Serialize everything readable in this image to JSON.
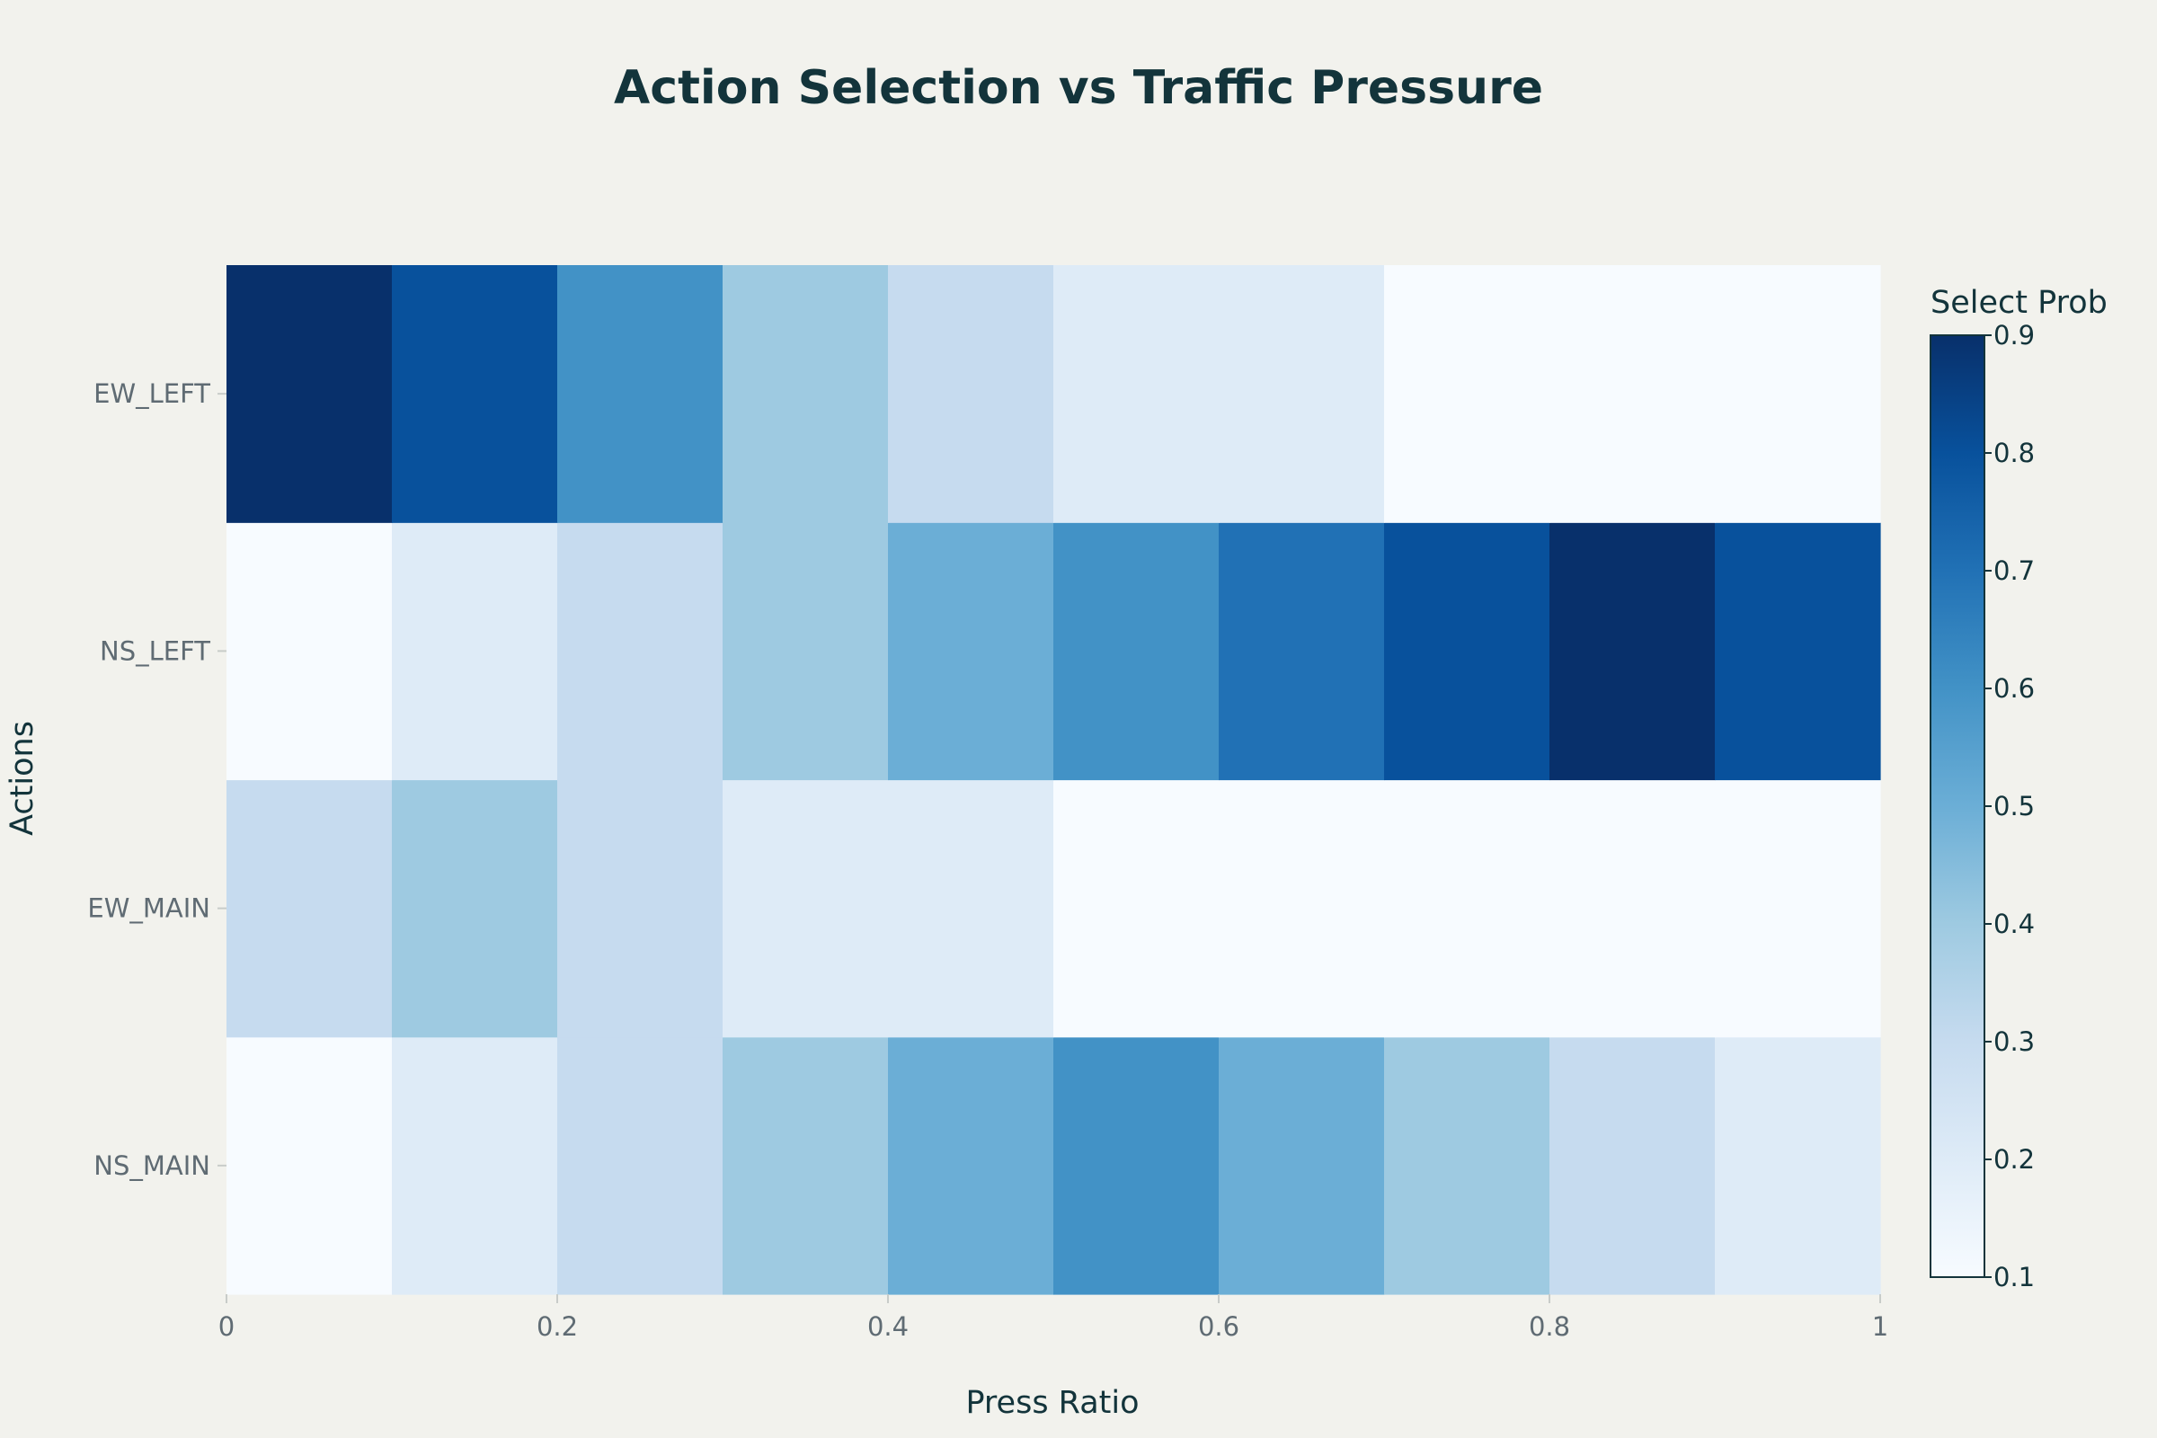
{
  "chart_data": {
    "type": "heatmap",
    "title": "Action Selection vs Traffic Pressure",
    "xlabel": "Press Ratio",
    "ylabel": "Actions",
    "x_edges": [
      0,
      0.1,
      0.2,
      0.3,
      0.4,
      0.5,
      0.6,
      0.7,
      0.8,
      0.9,
      1.0
    ],
    "x_ticks": [
      0,
      0.2,
      0.4,
      0.6,
      0.8,
      1
    ],
    "x_tick_labels": [
      "0",
      "0.2",
      "0.4",
      "0.6",
      "0.8",
      "1"
    ],
    "xlim": [
      0,
      1
    ],
    "rows": [
      "NS_MAIN",
      "EW_MAIN",
      "NS_LEFT",
      "EW_LEFT"
    ],
    "values": [
      [
        0.1,
        0.2,
        0.3,
        0.4,
        0.5,
        0.6,
        0.5,
        0.4,
        0.3,
        0.2
      ],
      [
        0.3,
        0.4,
        0.3,
        0.2,
        0.2,
        0.1,
        0.1,
        0.1,
        0.1,
        0.1
      ],
      [
        0.1,
        0.2,
        0.3,
        0.4,
        0.5,
        0.6,
        0.7,
        0.8,
        0.9,
        0.8
      ],
      [
        0.9,
        0.8,
        0.6,
        0.4,
        0.3,
        0.2,
        0.2,
        0.1,
        0.1,
        0.1
      ]
    ],
    "colorbar": {
      "title": "Select Prob",
      "range": [
        0.1,
        0.9
      ],
      "ticks": [
        0.1,
        0.2,
        0.3,
        0.4,
        0.5,
        0.6,
        0.7,
        0.8,
        0.9
      ],
      "colorscale": "Blues"
    },
    "grid": false
  }
}
